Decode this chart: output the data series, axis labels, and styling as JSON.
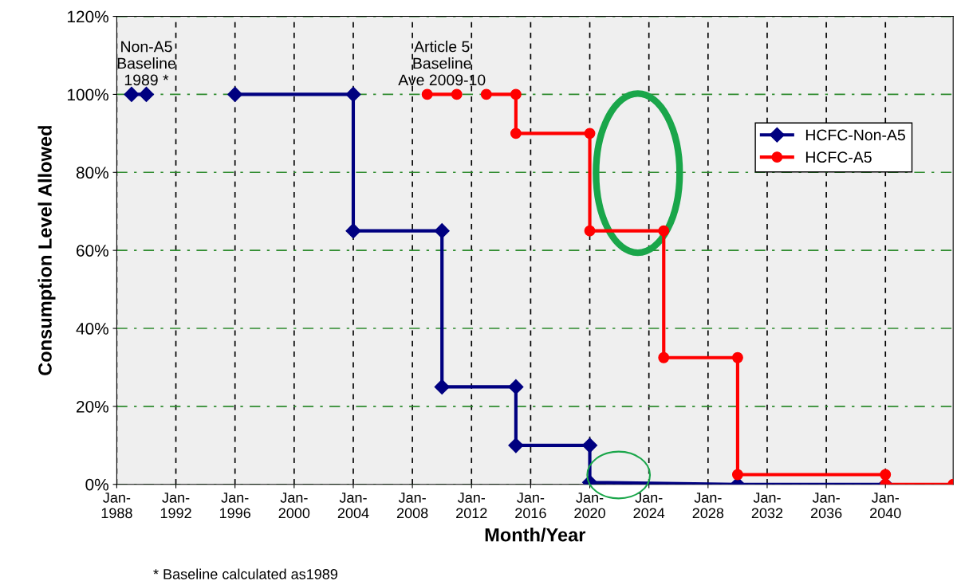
{
  "chart_data": {
    "type": "line",
    "xlabel": "Month/Year",
    "ylabel": "Consumption Level Allowed",
    "xlim": [
      "1988-01",
      "2044-08"
    ],
    "xticks": [
      {
        "value": "1988-01",
        "label": "Jan-\n1988"
      },
      {
        "value": "1992-01",
        "label": "Jan-\n1992"
      },
      {
        "value": "1996-01",
        "label": "Jan-\n1996"
      },
      {
        "value": "2000-01",
        "label": "Jan-\n2000"
      },
      {
        "value": "2004-01",
        "label": "Jan-\n2004"
      },
      {
        "value": "2008-01",
        "label": "Jan-\n2008"
      },
      {
        "value": "2012-01",
        "label": "Jan-\n2012"
      },
      {
        "value": "2016-01",
        "label": "Jan-\n2016"
      },
      {
        "value": "2020-01",
        "label": "Jan-\n2020"
      },
      {
        "value": "2024-01",
        "label": "Jan-\n2024"
      },
      {
        "value": "2028-01",
        "label": "Jan-\n2028"
      },
      {
        "value": "2032-01",
        "label": "Jan-\n2032"
      },
      {
        "value": "2036-01",
        "label": "Jan-\n2036"
      },
      {
        "value": "2040-01",
        "label": "Jan-\n2040"
      }
    ],
    "ylim": [
      0,
      120
    ],
    "yticks": [
      {
        "value": 0,
        "label": "0%"
      },
      {
        "value": 20,
        "label": "20%"
      },
      {
        "value": 40,
        "label": "40%"
      },
      {
        "value": 60,
        "label": "60%"
      },
      {
        "value": 80,
        "label": "80%"
      },
      {
        "value": 100,
        "label": "100%"
      },
      {
        "value": 120,
        "label": "120%"
      }
    ],
    "grid": true,
    "legend": "right",
    "line_style": "solid",
    "series": [
      {
        "name": "HCFC-Non-A5",
        "color": "#000080",
        "marker": "diamond",
        "x": [
          "1989-01",
          "1990-01",
          "1993-01",
          "1996-01",
          "2004-01",
          "2004-01",
          "2010-01",
          "2010-01",
          "2015-01",
          "2015-01",
          "2020-01",
          "2020-01",
          "2030-01",
          "2040-01"
        ],
        "values": [
          100,
          100,
          null,
          100,
          100,
          65,
          65,
          25,
          25,
          10,
          10,
          0.5,
          0,
          0
        ]
      },
      {
        "name": "HCFC-A5",
        "color": "#ff0000",
        "marker": "circle",
        "x": [
          "2009-01",
          "2011-01",
          "2012-01",
          "2013-01",
          "2015-01",
          "2015-01",
          "2020-01",
          "2020-01",
          "2025-01",
          "2025-01",
          "2030-01",
          "2030-01",
          "2040-01",
          "2040-01",
          "2044-08"
        ],
        "values": [
          100,
          100,
          null,
          100,
          100,
          90,
          90,
          65,
          65,
          32.5,
          32.5,
          2.5,
          2.5,
          0,
          0
        ]
      }
    ],
    "annotations": [
      {
        "text": "Non-A5\nBaseline\n1989 *",
        "x": "1990-01",
        "y": 100
      },
      {
        "text": "Article 5\nBaseline\nAve 2009-10",
        "x": "2010-01",
        "y": 100
      },
      "* Baseline calculated as1989"
    ]
  }
}
